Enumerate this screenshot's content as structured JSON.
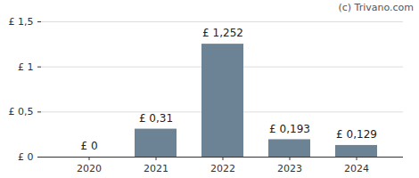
{
  "chart_data": {
    "type": "bar",
    "categories": [
      "2020",
      "2021",
      "2022",
      "2023",
      "2024"
    ],
    "values": [
      0,
      0.31,
      1.252,
      0.193,
      0.129
    ],
    "value_labels": [
      "£ 0",
      "£ 0,31",
      "£ 1,252",
      "£ 0,193",
      "£ 0,129"
    ],
    "data_labels": true,
    "color": "#6b8394",
    "ylim": [
      0,
      1.5
    ],
    "yticks": [
      {
        "value": 0,
        "label": "£ 0"
      },
      {
        "value": 0.5,
        "label": "£ 0,5"
      },
      {
        "value": 1,
        "label": "£ 1"
      },
      {
        "value": 1.5,
        "label": "£ 1,5"
      }
    ],
    "grid": true,
    "annotations": [
      "(c) Trivano.com"
    ]
  }
}
